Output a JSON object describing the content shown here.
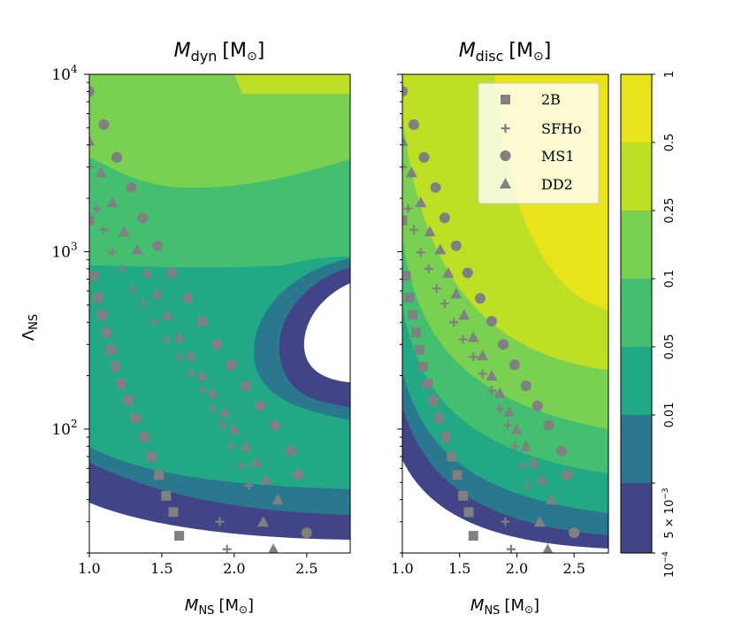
{
  "chart_data": [
    {
      "type": "contour",
      "title_main": "M",
      "title_sub": "dyn",
      "title_unit": "[M",
      "title_sun": "⊙",
      "title_close": "]",
      "xlabel_main": "M",
      "xlabel_sub": "NS",
      "xlabel_unit": "[M",
      "xlabel_sun": "⊙",
      "xlabel_close": "]",
      "ylabel_main": "Λ",
      "ylabel_sub": "NS",
      "xlim": [
        1.0,
        2.8
      ],
      "ylim": [
        20,
        10000
      ],
      "yscale": "log",
      "xticks": [
        {
          "value": 1.0,
          "label": "1.0"
        },
        {
          "value": 1.5,
          "label": "1.5"
        },
        {
          "value": 2.0,
          "label": "2.0"
        },
        {
          "value": 2.5,
          "label": "2.5"
        }
      ],
      "yticks": [
        {
          "value": 100,
          "base": "10",
          "exp": "2"
        },
        {
          "value": 1000,
          "base": "10",
          "exp": "3"
        },
        {
          "value": 10000,
          "base": "10",
          "exp": "4"
        }
      ]
    },
    {
      "type": "contour",
      "title_main": "M",
      "title_sub": "disc",
      "title_unit": "[M",
      "title_sun": "⊙",
      "title_close": "]",
      "xlabel_main": "M",
      "xlabel_sub": "NS",
      "xlabel_unit": "[M",
      "xlabel_sun": "⊙",
      "xlabel_close": "]",
      "xlim": [
        1.0,
        2.8
      ],
      "ylim": [
        20,
        10000
      ],
      "yscale": "log",
      "xticks": [
        {
          "value": 1.0,
          "label": "1.0"
        },
        {
          "value": 1.5,
          "label": "1.5"
        },
        {
          "value": 2.0,
          "label": "2.0"
        },
        {
          "value": 2.5,
          "label": "2.5"
        }
      ],
      "legend": [
        {
          "label": "2B",
          "marker": "square"
        },
        {
          "label": "SFHo",
          "marker": "plus"
        },
        {
          "label": "MS1",
          "marker": "circle"
        },
        {
          "label": "DD2",
          "marker": "triangle"
        }
      ],
      "legend_position": "top-right"
    }
  ],
  "colorbar": {
    "levels": [
      "10^{-4}",
      "5 × 10^{-3}",
      "0.01",
      "0.05",
      "0.1",
      "0.25",
      "0.5",
      "1"
    ],
    "tick_labels": [
      {
        "text": "10",
        "exp": "−4"
      },
      {
        "text": "5 × 10",
        "exp": "−3"
      },
      {
        "text": "0.01"
      },
      {
        "text": "0.05"
      },
      {
        "text": "0.1"
      },
      {
        "text": "0.25"
      },
      {
        "text": "0.5"
      },
      {
        "text": "1"
      }
    ],
    "colors": [
      "#414487",
      "#2a788e",
      "#22a884",
      "#44bf70",
      "#7ad151",
      "#bddf26",
      "#e8e419"
    ]
  },
  "colors": {
    "bg_white": "#ffffff",
    "marker": "#808080",
    "level1": "#414487",
    "level2": "#2a788e",
    "level3": "#22a884",
    "level4": "#44bf70",
    "level5": "#7ad151",
    "level6": "#bddf26",
    "level7": "#e8e419"
  },
  "sequences": {
    "2B": [
      [
        1.0,
        1500
      ],
      [
        1.03,
        730
      ],
      [
        1.06,
        550
      ],
      [
        1.09,
        440
      ],
      [
        1.12,
        350
      ],
      [
        1.15,
        280
      ],
      [
        1.18,
        225
      ],
      [
        1.22,
        180
      ],
      [
        1.27,
        145
      ],
      [
        1.32,
        115
      ],
      [
        1.38,
        90
      ],
      [
        1.43,
        70
      ],
      [
        1.48,
        55
      ],
      [
        1.53,
        42
      ],
      [
        1.58,
        34
      ],
      [
        1.62,
        25
      ]
    ],
    "SFHo": [
      [
        1.0,
        3000
      ],
      [
        1.05,
        1750
      ],
      [
        1.1,
        1330
      ],
      [
        1.16,
        990
      ],
      [
        1.23,
        800
      ],
      [
        1.3,
        620
      ],
      [
        1.37,
        510
      ],
      [
        1.45,
        400
      ],
      [
        1.53,
        320
      ],
      [
        1.62,
        255
      ],
      [
        1.7,
        205
      ],
      [
        1.78,
        165
      ],
      [
        1.85,
        130
      ],
      [
        1.92,
        105
      ],
      [
        1.98,
        80
      ],
      [
        2.05,
        62
      ],
      [
        2.1,
        48
      ],
      [
        1.9,
        30
      ],
      [
        1.95,
        21
      ]
    ],
    "MS1": [
      [
        1.0,
        8000
      ],
      [
        1.1,
        5200
      ],
      [
        1.19,
        3400
      ],
      [
        1.29,
        2300
      ],
      [
        1.37,
        1550
      ],
      [
        1.47,
        1080
      ],
      [
        1.57,
        760
      ],
      [
        1.68,
        545
      ],
      [
        1.78,
        405
      ],
      [
        1.88,
        300
      ],
      [
        1.98,
        230
      ],
      [
        2.08,
        175
      ],
      [
        2.18,
        135
      ],
      [
        2.28,
        105
      ],
      [
        2.39,
        75
      ],
      [
        2.44,
        55
      ],
      [
        2.5,
        26
      ]
    ],
    "DD2": [
      [
        1.0,
        4200
      ],
      [
        1.08,
        2800
      ],
      [
        1.16,
        1900
      ],
      [
        1.24,
        1300
      ],
      [
        1.33,
        1030
      ],
      [
        1.4,
        760
      ],
      [
        1.47,
        580
      ],
      [
        1.54,
        440
      ],
      [
        1.62,
        330
      ],
      [
        1.7,
        260
      ],
      [
        1.78,
        200
      ],
      [
        1.85,
        160
      ],
      [
        1.93,
        125
      ],
      [
        2.0,
        100
      ],
      [
        2.08,
        80
      ],
      [
        2.15,
        65
      ],
      [
        2.22,
        52
      ],
      [
        2.3,
        40
      ],
      [
        2.2,
        30
      ],
      [
        2.27,
        21
      ]
    ]
  }
}
